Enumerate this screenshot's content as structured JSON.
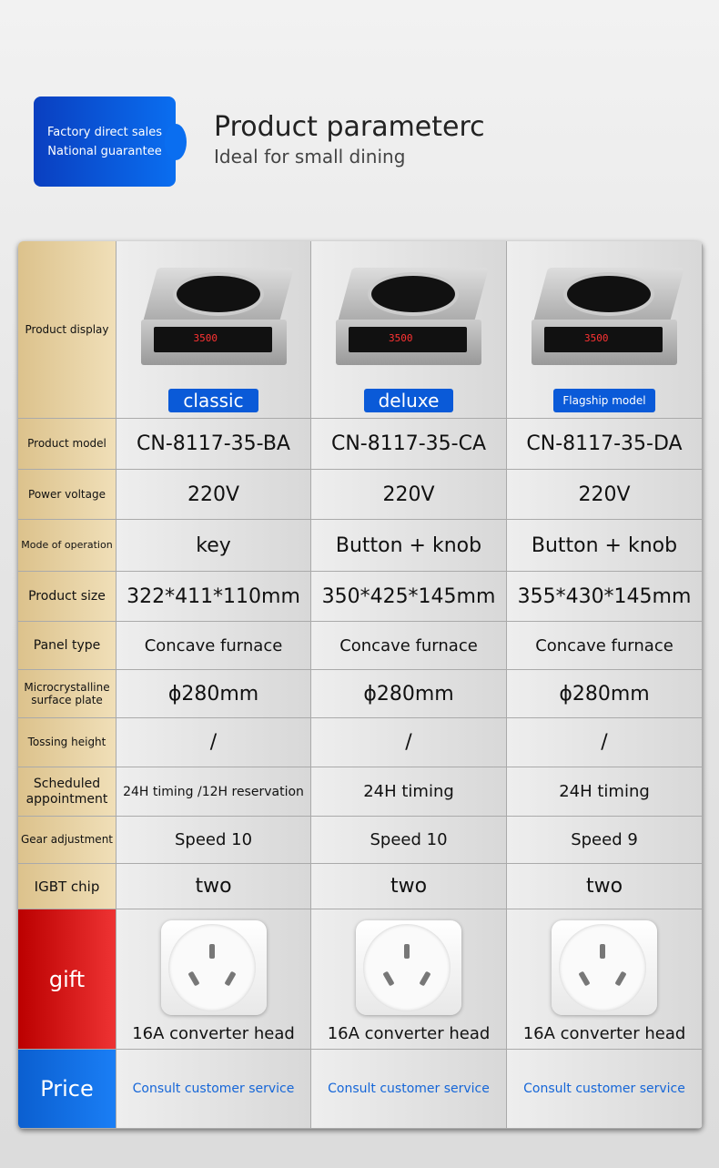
{
  "badge": {
    "line1": "Factory direct sales",
    "line2": "National guarantee"
  },
  "header": {
    "title": "Product parameterc",
    "subtitle": "Ideal for small dining"
  },
  "labels": {
    "display": "Product display",
    "model": "Product model",
    "voltage": "Power voltage",
    "mode": "Mode of operation",
    "size": "Product size",
    "panel": "Panel type",
    "plate": "Microcrystalline surface plate",
    "tossing": "Tossing height",
    "scheduled": "Scheduled appointment",
    "gear": "Gear adjustment",
    "igbt": "IGBT chip",
    "gift": "gift",
    "price": "Price"
  },
  "products": [
    {
      "tag": "classic",
      "led": "3500",
      "model": "CN-8117-35-BA",
      "voltage": "220V",
      "mode": "key",
      "size": "322*411*110mm",
      "panel": "Concave furnace",
      "plate": "ϕ280mm",
      "tossing": "/",
      "scheduled": "24H timing /12H reservation",
      "gear": "Speed 10",
      "igbt": "two",
      "gift": "16A converter head",
      "price": "Consult customer service"
    },
    {
      "tag": "deluxe",
      "led": "3500",
      "model": "CN-8117-35-CA",
      "voltage": "220V",
      "mode": "Button + knob",
      "size": "350*425*145mm",
      "panel": "Concave furnace",
      "plate": "ϕ280mm",
      "tossing": "/",
      "scheduled": "24H timing",
      "gear": "Speed 10",
      "igbt": "two",
      "gift": "16A converter head",
      "price": "Consult customer service"
    },
    {
      "tag": "Flagship model",
      "led": "3500",
      "model": "CN-8117-35-DA",
      "voltage": "220V",
      "mode": "Button + knob",
      "size": "355*430*145mm",
      "panel": "Concave furnace",
      "plate": "ϕ280mm",
      "tossing": "/",
      "scheduled": "24H timing",
      "gear": "Speed 9",
      "igbt": "two",
      "gift": "16A converter head",
      "price": "Consult customer service"
    }
  ]
}
